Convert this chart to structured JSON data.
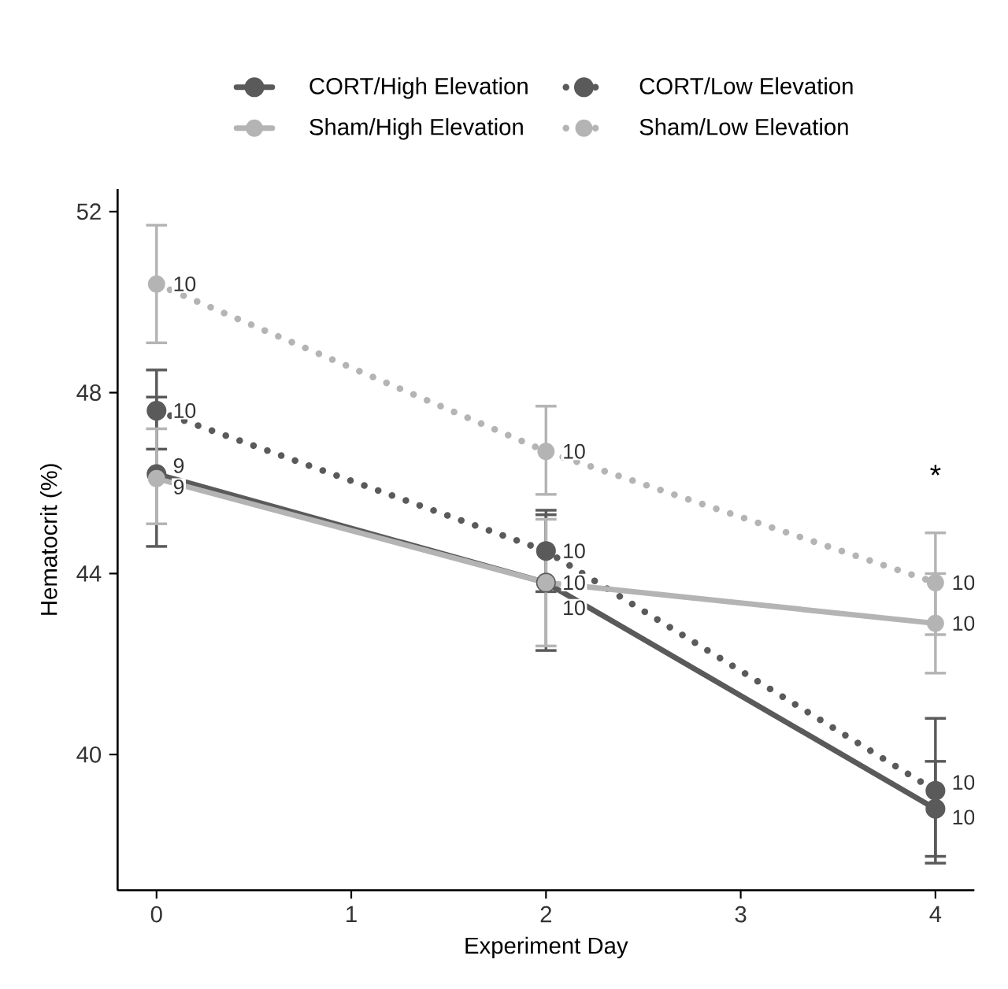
{
  "chart_data": {
    "type": "line",
    "xlabel": "Experiment Day",
    "ylabel": "Hematocrit (%)",
    "x": [
      0,
      2,
      4
    ],
    "xlim": [
      -0.2,
      4.2
    ],
    "ylim": [
      37,
      52.5
    ],
    "xticks": [
      0,
      1,
      2,
      3,
      4
    ],
    "yticks": [
      40,
      44,
      48,
      52
    ],
    "legend": "top",
    "grid": false,
    "marker": "circle",
    "annotations": [
      "*",
      {
        "text": "9",
        "x": 0,
        "y": 46.2
      },
      {
        "text": "10",
        "x": 2,
        "y": 43.8
      },
      {
        "text": "10",
        "x": 4,
        "y": 38.8
      },
      {
        "text": "10",
        "x": 0,
        "y": 47.6
      },
      {
        "text": "10",
        "x": 2,
        "y": 44.5
      },
      {
        "text": "10",
        "x": 4,
        "y": 39.2
      },
      {
        "text": "9",
        "x": 0,
        "y": 46.1
      },
      {
        "text": "10",
        "x": 2,
        "y": 43.8
      },
      {
        "text": "10",
        "x": 4,
        "y": 42.9
      },
      {
        "text": "10",
        "x": 0,
        "y": 50.4
      },
      {
        "text": "10",
        "x": 2,
        "y": 46.7
      },
      {
        "text": "10",
        "x": 4,
        "y": 43.8
      }
    ],
    "series": [
      {
        "name": "CORT/High Elevation",
        "color": "#5a5a5a",
        "line_style": "solid",
        "values": [
          46.2,
          43.8,
          38.8
        ],
        "errors": [
          [
            44.6,
            47.9
          ],
          [
            42.3,
            45.3
          ],
          [
            37.6,
            39.85
          ]
        ]
      },
      {
        "name": "CORT/Low Elevation",
        "color": "#5a5a5a",
        "line_style": "dotted",
        "values": [
          47.6,
          44.5,
          39.2
        ],
        "errors": [
          [
            46.75,
            48.5
          ],
          [
            43.6,
            45.4
          ],
          [
            37.75,
            40.8
          ]
        ]
      },
      {
        "name": "Sham/High Elevation",
        "color": "#b4b4b4",
        "line_style": "solid",
        "values": [
          46.1,
          43.8,
          42.9
        ],
        "errors": [
          [
            45.1,
            47.2
          ],
          [
            42.4,
            45.2
          ],
          [
            41.8,
            44.0
          ]
        ]
      },
      {
        "name": "Sham/Low Elevation",
        "color": "#b4b4b4",
        "line_style": "dotted",
        "values": [
          50.4,
          46.7,
          43.8
        ],
        "errors": [
          [
            49.1,
            51.7
          ],
          [
            45.75,
            47.7
          ],
          [
            42.65,
            44.9
          ]
        ]
      }
    ]
  }
}
